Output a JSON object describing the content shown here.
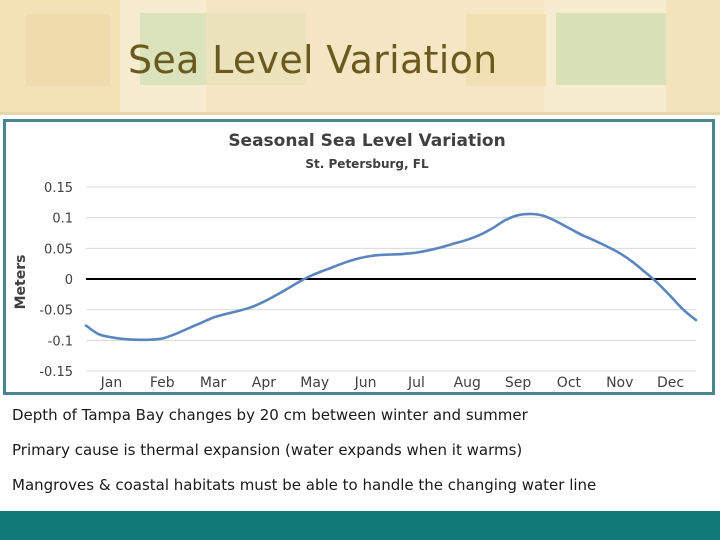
{
  "slide": {
    "title": "Sea Level Variation",
    "bullets": [
      "Depth of Tampa Bay changes by 20 cm between winter and summer",
      "Primary cause is thermal expansion (water expands when it warms)",
      "Mangroves & coastal habitats must be able to handle the changing water line"
    ]
  },
  "colors": {
    "banner": "#f7ecd0",
    "title": "#6b5a1e",
    "chart_border": "#4a8490",
    "footer": "#117a78",
    "series": "#5b85be"
  },
  "chart_data": {
    "type": "line",
    "title": "Seasonal Sea Level Variation",
    "subtitle": "St. Petersburg, FL",
    "ylabel": "Meters",
    "xlabel": "",
    "ylim": [
      -0.15,
      0.15
    ],
    "yticks": [
      "0.15",
      "0.1",
      "0.05",
      "0",
      "-0.05",
      "-0.1",
      "-0.15"
    ],
    "ytick_values": [
      0.15,
      0.1,
      0.05,
      0,
      -0.05,
      -0.1,
      -0.15
    ],
    "categories": [
      "Jan",
      "Feb",
      "Mar",
      "Apr",
      "May",
      "Jun",
      "Jul",
      "Aug",
      "Sep",
      "Oct",
      "Nov",
      "Dec"
    ],
    "grid": true,
    "zero_line": true,
    "series": [
      {
        "x": [
          0.0,
          0.25,
          0.5,
          0.75,
          1.0,
          1.25,
          1.5,
          1.75,
          2.0,
          2.25,
          2.5,
          2.75,
          3.0,
          3.25,
          3.5,
          3.75,
          4.0,
          4.25,
          4.5,
          4.75,
          5.0,
          5.25,
          5.5,
          5.75,
          6.0,
          6.25,
          6.5,
          6.75,
          7.0,
          7.25,
          7.5,
          7.75,
          8.0,
          8.25,
          8.5,
          8.75,
          9.0,
          9.25,
          9.5,
          9.75,
          10.0,
          10.25,
          10.5,
          10.75,
          11.0,
          11.25,
          11.5,
          11.75,
          12.0
        ],
        "y": [
          -0.076,
          -0.09,
          -0.095,
          -0.098,
          -0.099,
          -0.099,
          -0.097,
          -0.09,
          -0.081,
          -0.072,
          -0.063,
          -0.057,
          -0.052,
          -0.046,
          -0.037,
          -0.026,
          -0.014,
          -0.002,
          0.008,
          0.016,
          0.024,
          0.031,
          0.036,
          0.039,
          0.04,
          0.041,
          0.043,
          0.047,
          0.052,
          0.058,
          0.064,
          0.072,
          0.083,
          0.096,
          0.104,
          0.106,
          0.103,
          0.094,
          0.083,
          0.072,
          0.063,
          0.053,
          0.042,
          0.028,
          0.011,
          -0.007,
          -0.028,
          -0.05,
          -0.067
        ]
      }
    ]
  }
}
